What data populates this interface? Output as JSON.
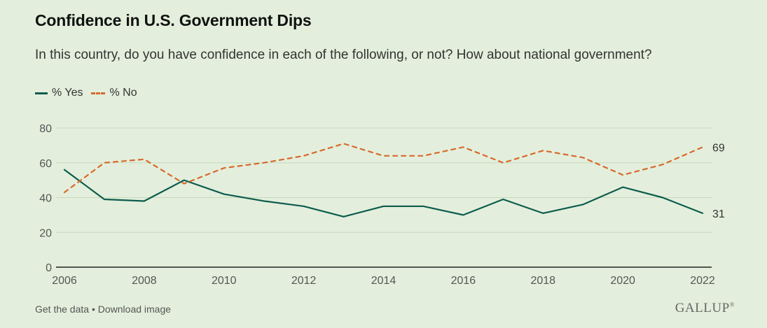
{
  "header": {
    "title": "Confidence in U.S. Government Dips",
    "subtitle": "In this country, do you have confidence in each of the following, or not? How about national government?"
  },
  "legend": {
    "yes_label": "% Yes",
    "no_label": "% No"
  },
  "chart_data": {
    "type": "line",
    "title": "Confidence in U.S. Government Dips",
    "subtitle": "In this country, do you have confidence in each of the following, or not? How about national government?",
    "x": [
      2006,
      2007,
      2008,
      2009,
      2010,
      2011,
      2012,
      2013,
      2014,
      2015,
      2016,
      2017,
      2018,
      2019,
      2020,
      2021,
      2022
    ],
    "series": [
      {
        "name": "% Yes",
        "color": "#0d5c4e",
        "style": "solid",
        "values": [
          56,
          39,
          38,
          50,
          42,
          38,
          35,
          29,
          35,
          35,
          30,
          39,
          31,
          36,
          46,
          40,
          31
        ],
        "end_label": "31"
      },
      {
        "name": "% No",
        "color": "#d9692d",
        "style": "dashed",
        "values": [
          43,
          60,
          62,
          48,
          57,
          60,
          64,
          71,
          64,
          64,
          69,
          60,
          67,
          63,
          53,
          59,
          69
        ],
        "end_label": "69"
      }
    ],
    "xticks": [
      "2006",
      "2008",
      "2010",
      "2012",
      "2014",
      "2016",
      "2018",
      "2020",
      "2022"
    ],
    "yticks": [
      "0",
      "20",
      "40",
      "60",
      "80"
    ],
    "ylim": [
      0,
      80
    ],
    "xlim": [
      2006,
      2022
    ],
    "grid": true,
    "legend_position": "top-left"
  },
  "footer": {
    "get_data": "Get the data",
    "separator": " • ",
    "download": "Download image",
    "brand": "GALLUP",
    "brand_mark": "®"
  }
}
